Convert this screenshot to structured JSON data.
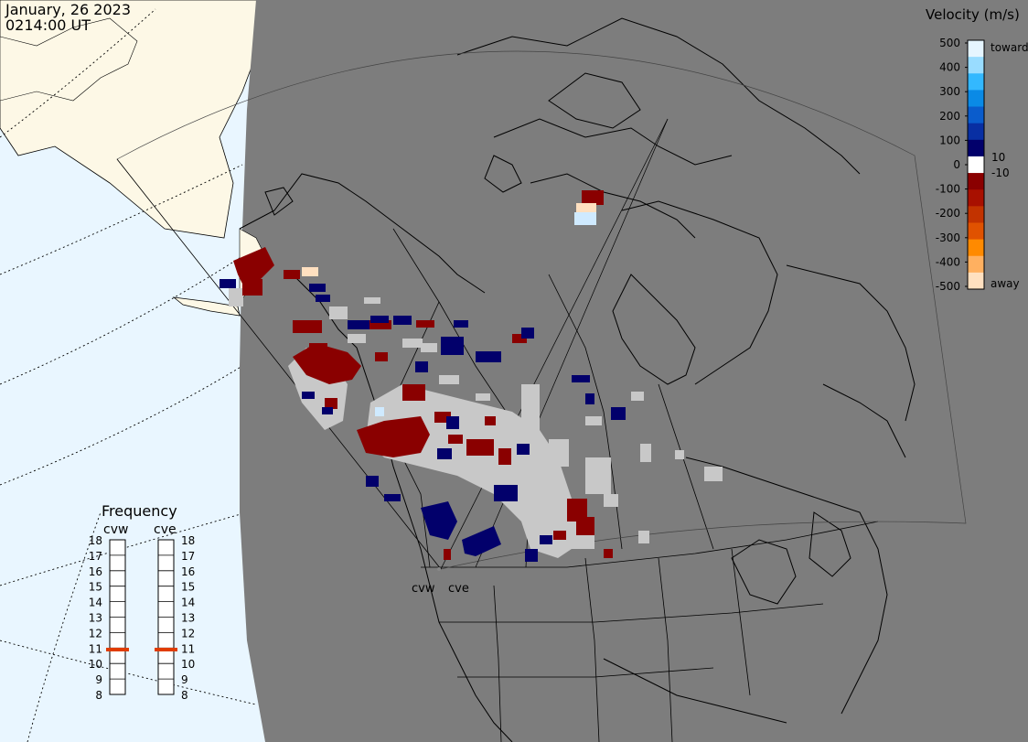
{
  "header": {
    "date": "January, 26 2023",
    "time": "0214:00 UT"
  },
  "legend": {
    "title": "Velocity (m/s)",
    "ticks": [
      "500",
      "400",
      "300",
      "200",
      "100",
      "0",
      "-100",
      "-200",
      "-300",
      "-400",
      "-500"
    ],
    "inner_pos": "10",
    "inner_neg": "-10",
    "toward_label": "toward",
    "away_label": "away",
    "colors": [
      "#e6f5ff",
      "#99dcff",
      "#33b8ff",
      "#0a8ae6",
      "#0a5ccc",
      "#082fa3",
      "#02006b",
      "#ffffff",
      "#8a0000",
      "#a81000",
      "#c23300",
      "#e05200",
      "#ff8a00",
      "#ffb060",
      "#ffe0c0"
    ]
  },
  "frequency": {
    "title": "Frequency",
    "radars": [
      "cvw",
      "cve"
    ],
    "scale": [
      "18",
      "17",
      "16",
      "15",
      "14",
      "13",
      "12",
      "11",
      "10",
      "9",
      "8"
    ],
    "current_mhz": [
      10.9,
      10.9
    ],
    "marker_color": "#e03c00"
  },
  "map_labels": {
    "cvw": "cvw",
    "cve": "cve"
  },
  "colors": {
    "ocean": "#e9f6ff",
    "land": "#fdf8e6",
    "night_shadow": "#7d7d7d",
    "ground_scatter": "#c8c8c8",
    "toward_dark": "#02006b",
    "away_dark": "#8a0000"
  }
}
